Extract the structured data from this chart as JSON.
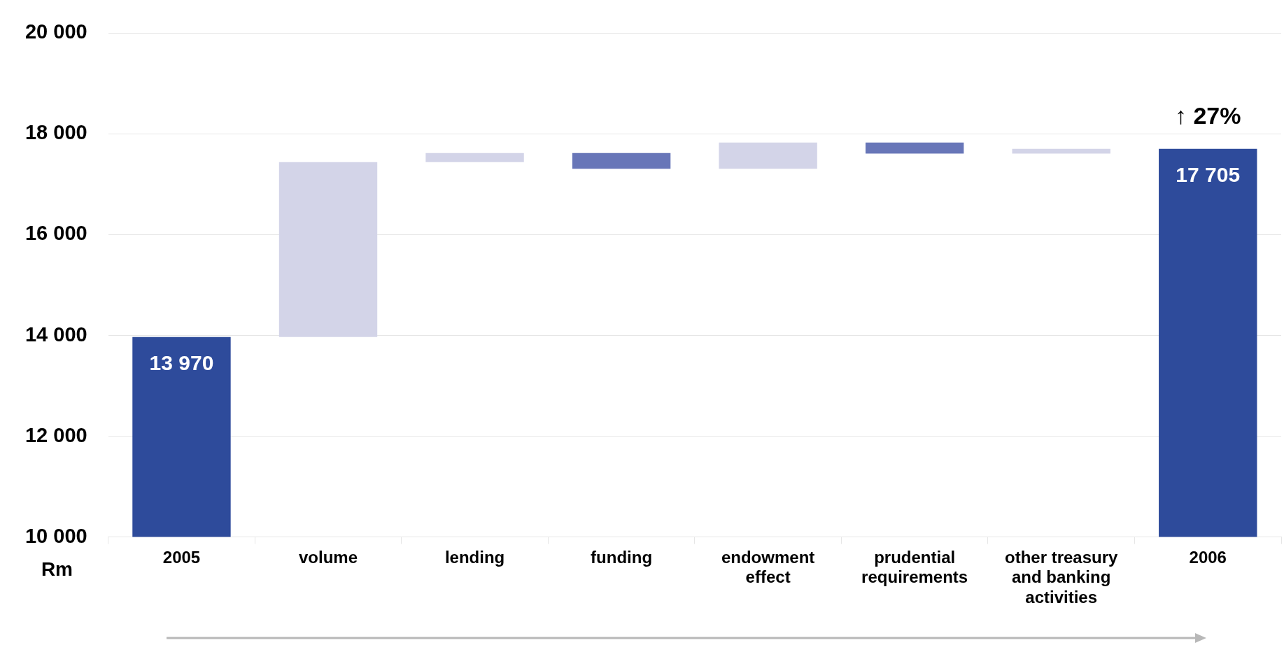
{
  "chart_data": {
    "type": "bar",
    "categories": [
      "2005",
      "volume",
      "lending",
      "funding",
      "endowment effect",
      "prudential requirements",
      "other treasury and banking activities",
      "2006"
    ],
    "values": [
      13970,
      3470,
      180,
      -310,
      520,
      -220,
      95,
      17705
    ],
    "base": [
      null,
      13970,
      17440,
      17620,
      17310,
      17830,
      17610,
      null
    ],
    "colors": [
      "#2e4b9b",
      "#d3d4e8",
      "#d3d4e8",
      "#6876b8",
      "#d3d4e8",
      "#6876b8",
      "#d3d4e8",
      "#2e4b9b"
    ],
    "value_labels": [
      "13 970",
      null,
      null,
      null,
      null,
      null,
      null,
      "17 705"
    ],
    "annotations": [
      {
        "text": "↑ 27%",
        "x": "2006",
        "y": 17705
      }
    ],
    "ylabel": "Rm",
    "ylim": [
      10000,
      20000
    ],
    "yticks": [
      {
        "value": 10000,
        "label": "10 000"
      },
      {
        "value": 12000,
        "label": "12 000"
      },
      {
        "value": 14000,
        "label": "14 000"
      },
      {
        "value": 16000,
        "label": "16 000"
      },
      {
        "value": 18000,
        "label": "18 000"
      },
      {
        "value": 20000,
        "label": "20 000"
      }
    ],
    "grid": "y",
    "legend": false
  }
}
